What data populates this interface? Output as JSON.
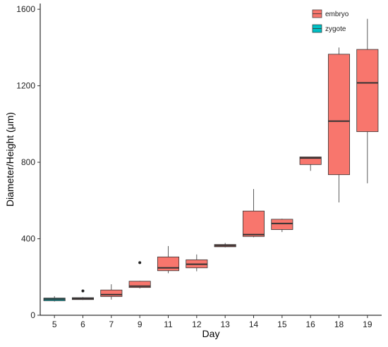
{
  "chart_data": {
    "type": "box",
    "xlabel": "Day",
    "ylabel": "Diameter/Height (μm)",
    "ylim": [
      0,
      1630
    ],
    "yticks": [
      0,
      400,
      800,
      1200,
      1600
    ],
    "grid": false,
    "legend_position": "top-right",
    "categories": [
      "5",
      "6",
      "7",
      "9",
      "11",
      "12",
      "13",
      "14",
      "15",
      "16",
      "18",
      "19"
    ],
    "series": [
      {
        "name": "embryo",
        "color": "#F8766D",
        "boxes": [
          {
            "category": "6",
            "min": 80,
            "q1": 82,
            "median": 87,
            "q3": 92,
            "max": 95,
            "outliers": [
              127
            ]
          },
          {
            "category": "7",
            "min": 82,
            "q1": 98,
            "median": 108,
            "q3": 132,
            "max": 162,
            "outliers": []
          },
          {
            "category": "9",
            "min": 140,
            "q1": 145,
            "median": 152,
            "q3": 178,
            "max": 180,
            "outliers": [
              275
            ]
          },
          {
            "category": "11",
            "min": 220,
            "q1": 233,
            "median": 248,
            "q3": 305,
            "max": 362,
            "outliers": []
          },
          {
            "category": "12",
            "min": 230,
            "q1": 248,
            "median": 267,
            "q3": 290,
            "max": 318,
            "outliers": []
          },
          {
            "category": "13",
            "min": 355,
            "q1": 358,
            "median": 364,
            "q3": 370,
            "max": 378,
            "outliers": []
          },
          {
            "category": "14",
            "min": 408,
            "q1": 412,
            "median": 422,
            "q3": 545,
            "max": 660,
            "outliers": []
          },
          {
            "category": "15",
            "min": 435,
            "q1": 448,
            "median": 480,
            "q3": 502,
            "max": 505,
            "outliers": []
          },
          {
            "category": "16",
            "min": 755,
            "q1": 788,
            "median": 822,
            "q3": 828,
            "max": 828,
            "outliers": []
          },
          {
            "category": "18",
            "min": 590,
            "q1": 735,
            "median": 1015,
            "q3": 1365,
            "max": 1400,
            "outliers": []
          },
          {
            "category": "19",
            "min": 690,
            "q1": 960,
            "median": 1215,
            "q3": 1390,
            "max": 1550,
            "outliers": []
          }
        ]
      },
      {
        "name": "zygote",
        "color": "#00BFC4",
        "boxes": [
          {
            "category": "5",
            "min": 72,
            "q1": 76,
            "median": 84,
            "q3": 90,
            "max": 100,
            "outliers": []
          }
        ]
      }
    ]
  }
}
